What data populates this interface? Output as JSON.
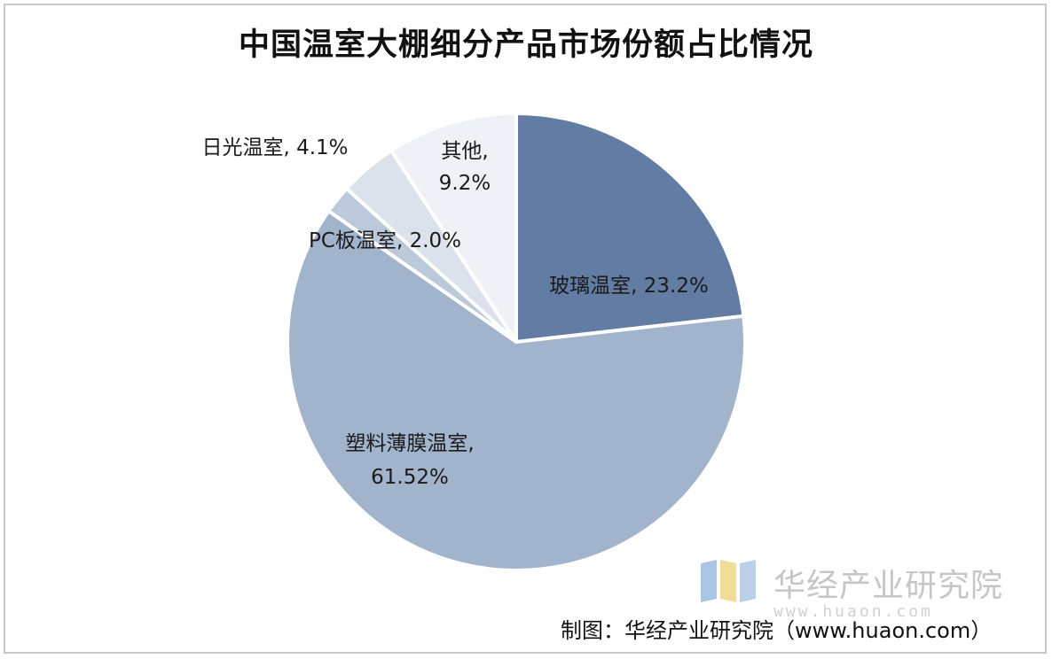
{
  "title": "中国温室大棚细分产品市场份额占比情况",
  "chart_data": {
    "type": "pie",
    "title": "中国温室大棚细分产品市场份额占比情况",
    "slices": [
      {
        "label": "玻璃温室",
        "value": 23.2,
        "value_text": "23.2%",
        "color": "#637ca3"
      },
      {
        "label": "塑料薄膜温室",
        "value": 61.52,
        "value_text": "61.52%",
        "color": "#a2b3cc"
      },
      {
        "label": "PC板温室",
        "value": 2.0,
        "value_text": "2.0%",
        "color": "#bcc9da"
      },
      {
        "label": "日光温室",
        "value": 4.1,
        "value_text": "4.1%",
        "color": "#dbe2ec"
      },
      {
        "label": "其他",
        "value": 9.2,
        "value_text": "9.2%",
        "color": "#eef1f6"
      }
    ],
    "start_angle": "12 o'clock",
    "direction": "clockwise",
    "legend": "none"
  },
  "watermark": {
    "name": "华经产业研究院",
    "url": "www.huaon.com"
  },
  "source": "制图：华经产业研究院（www.huaon.com）"
}
